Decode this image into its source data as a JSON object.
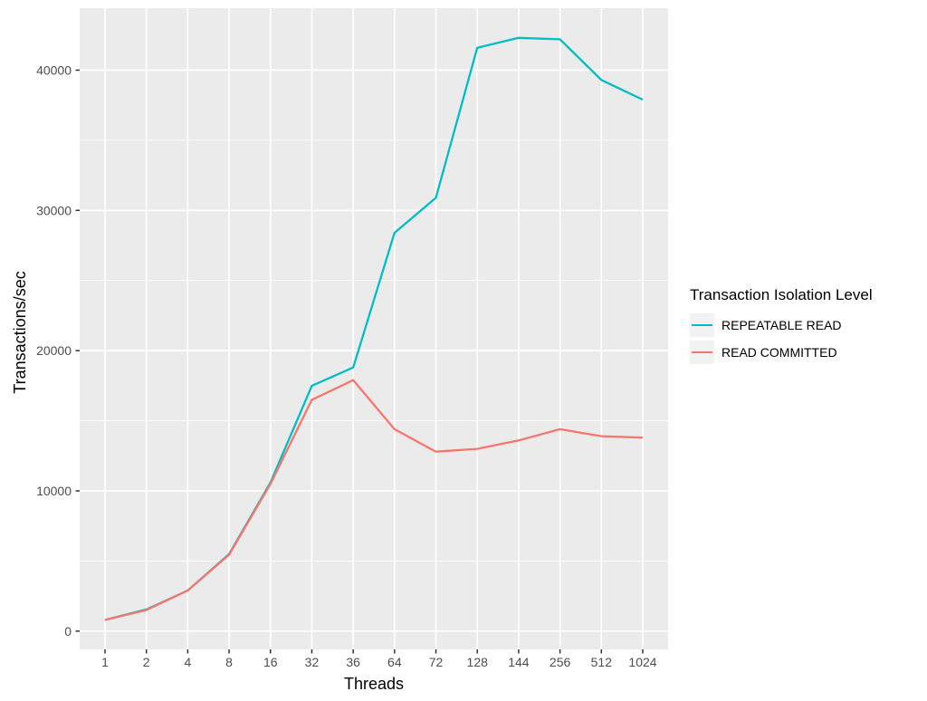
{
  "theme": {
    "background": "#FFFFFF",
    "panel_bg": "#EBEBEB",
    "grid_color": "#FFFFFF",
    "tick_mark_color": "#333333",
    "tick_label_color": "#4D4D4D",
    "axis_title_color": "#000000",
    "legend_key_bg": "#F2F2F2"
  },
  "legend": {
    "title": "Transaction Isolation Level",
    "items": [
      {
        "label": "REPEATABLE READ",
        "color": "#00BFC4"
      },
      {
        "label": "READ COMMITTED",
        "color": "#F8766D"
      }
    ]
  },
  "chart_data": {
    "type": "line",
    "title": "",
    "xlabel": "Threads",
    "ylabel": "Transactions/sec",
    "x_scale": "discrete",
    "grid": true,
    "legend_position": "right",
    "legend_title": "Transaction Isolation Level",
    "categories": [
      "1",
      "2",
      "4",
      "8",
      "16",
      "32",
      "36",
      "64",
      "72",
      "128",
      "144",
      "256",
      "512",
      "1024"
    ],
    "ylim": [
      -1300,
      44420
    ],
    "yticks": [
      0,
      10000,
      20000,
      30000,
      40000
    ],
    "yticks_minor": [
      5000,
      15000,
      25000,
      35000
    ],
    "series": [
      {
        "name": "REPEATABLE READ",
        "color": "#00BFC4",
        "values": [
          800,
          1550,
          2900,
          5500,
          10600,
          17500,
          18800,
          28400,
          30900,
          41600,
          42300,
          42200,
          39300,
          37900
        ]
      },
      {
        "name": "READ COMMITTED",
        "color": "#F8766D",
        "values": [
          800,
          1500,
          2900,
          5450,
          10500,
          16500,
          17900,
          14400,
          12800,
          13000,
          13600,
          14400,
          13900,
          13800
        ]
      }
    ]
  }
}
